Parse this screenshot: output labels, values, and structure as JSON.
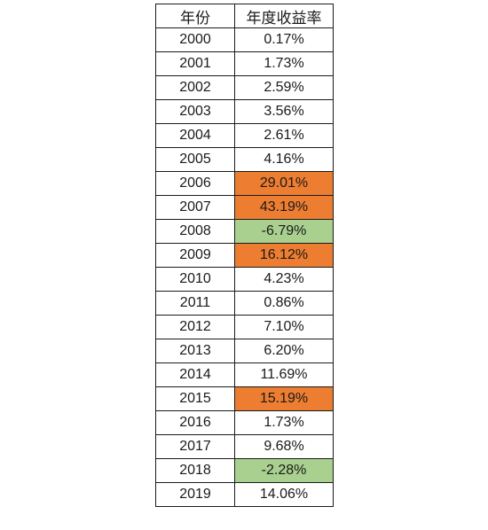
{
  "table": {
    "headers": [
      "年份",
      "年度收益率"
    ],
    "rows": [
      {
        "year": "2000",
        "return": "0.17%",
        "highlight": ""
      },
      {
        "year": "2001",
        "return": "1.73%",
        "highlight": ""
      },
      {
        "year": "2002",
        "return": "2.59%",
        "highlight": ""
      },
      {
        "year": "2003",
        "return": "3.56%",
        "highlight": ""
      },
      {
        "year": "2004",
        "return": "2.61%",
        "highlight": ""
      },
      {
        "year": "2005",
        "return": "4.16%",
        "highlight": ""
      },
      {
        "year": "2006",
        "return": "29.01%",
        "highlight": "orange"
      },
      {
        "year": "2007",
        "return": "43.19%",
        "highlight": "orange"
      },
      {
        "year": "2008",
        "return": "-6.79%",
        "highlight": "green"
      },
      {
        "year": "2009",
        "return": "16.12%",
        "highlight": "orange"
      },
      {
        "year": "2010",
        "return": "4.23%",
        "highlight": ""
      },
      {
        "year": "2011",
        "return": "0.86%",
        "highlight": ""
      },
      {
        "year": "2012",
        "return": "7.10%",
        "highlight": ""
      },
      {
        "year": "2013",
        "return": "6.20%",
        "highlight": ""
      },
      {
        "year": "2014",
        "return": "11.69%",
        "highlight": ""
      },
      {
        "year": "2015",
        "return": "15.19%",
        "highlight": "orange"
      },
      {
        "year": "2016",
        "return": "1.73%",
        "highlight": ""
      },
      {
        "year": "2017",
        "return": "9.68%",
        "highlight": ""
      },
      {
        "year": "2018",
        "return": "-2.28%",
        "highlight": "green"
      },
      {
        "year": "2019",
        "return": "14.06%",
        "highlight": ""
      }
    ]
  },
  "colors": {
    "orange": "#ed7d31",
    "green": "#a9d08e",
    "border": "#1a1a1a",
    "text": "#1a1a1a"
  }
}
